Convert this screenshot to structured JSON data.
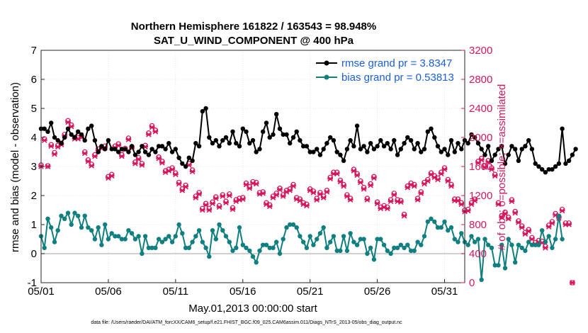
{
  "chart_data": {
    "type": "line",
    "title": [
      "Northern Hemisphere 161822 / 163543 = 98.948%",
      "SAT_U_WIND_COMPONENT @ 400 hPa"
    ],
    "xlabel": "May.01,2013 00:00:00 start",
    "ylabel": "rmse and bias (model - observation)",
    "ylabel_right": "# of obs: o=possible; ×=assimilated",
    "footnote": "data file: /Users/raeder/DAI/ATM_forcXX/CAM6_setup/f.e21.FHIST_BGC.f09_025.CAM6assim.011/Diags_NTrS_2013-05/obs_diag_output.nc",
    "x_ticks": [
      "05/01",
      "05/06",
      "05/11",
      "05/16",
      "05/21",
      "05/26",
      "05/31"
    ],
    "x_range_days": [
      1,
      32.5
    ],
    "ylim": [
      -1,
      7
    ],
    "ylim_right": [
      0,
      3200
    ],
    "y_ticks": [
      "-1",
      "0",
      "1",
      "2",
      "3",
      "4",
      "5",
      "6",
      "7"
    ],
    "y_ticks_right": [
      "0",
      "400",
      "800",
      "1200",
      "1600",
      "2000",
      "2400",
      "2800",
      "3200"
    ],
    "grid": true,
    "legend_placement": "top-right",
    "colors": {
      "rmse": "#000000",
      "bias": "#107f80",
      "obs": "#d6155c",
      "zero_line": "#c0c0c0"
    },
    "series": [
      {
        "name": "rmse grand pr = 3.8347",
        "axis": "left",
        "x_start_day": 1,
        "x_step_days": 0.25,
        "values": [
          4.3,
          4.3,
          4.2,
          4.5,
          4,
          3.9,
          3.8,
          4,
          4.3,
          4.1,
          4,
          4.2,
          4.1,
          3.9,
          4.3,
          4.4,
          3.9,
          3.5,
          3.7,
          3.6,
          3.9,
          3.6,
          3.6,
          3.5,
          3.6,
          3.6,
          3.5,
          3.7,
          3.4,
          3.5,
          3.7,
          3.5,
          3.4,
          3.6,
          3.5,
          3.7,
          3.7,
          3.6,
          3.8,
          3.5,
          3.6,
          3.3,
          3.1,
          3.0,
          3.3,
          3.2,
          3.8,
          3.7,
          4.9,
          5.0,
          4.0,
          3.8,
          3.9,
          3.7,
          3.9,
          4.0,
          3.8,
          4.2,
          3.8,
          3.7,
          4.3,
          4.2,
          3.8,
          3.9,
          3.5,
          3.6,
          4.2,
          4.5,
          4.0,
          4.1,
          4.8,
          4.3,
          4.1,
          4.1,
          3.8,
          4.0,
          4.2,
          3.9,
          3.7,
          3.7,
          3.5,
          3.5,
          3.6,
          3.4,
          3.6,
          3.8,
          4.0,
          3.9,
          3.5,
          3.4,
          3.2,
          3.6,
          3.9,
          3.7,
          4.4,
          3.6,
          3.7,
          3.5,
          3.8,
          3.6,
          3.7,
          3.9,
          3.7,
          3.8,
          3.6,
          3.9,
          3.4,
          3.6,
          3.8,
          4.0,
          3.9,
          3.6,
          3.8,
          3.5,
          3.6,
          4.2,
          4.3,
          4.0,
          3.7,
          3.5,
          3.6,
          3.4,
          3.9,
          3.5,
          3.8,
          3.6,
          3.9,
          3.8,
          4.1,
          4.0,
          3.8,
          3.6,
          3.4,
          3.7,
          3.2,
          3.4,
          3.6,
          3.7,
          3.1,
          3.4,
          3.7,
          3.6,
          3.2,
          3.6,
          3.7,
          3.9,
          3.6,
          3.1,
          3.0,
          2.9,
          2.8,
          2.9,
          2.9,
          3.0,
          3.1,
          4.3,
          3.1,
          3.2,
          3.4,
          3.6
        ]
      },
      {
        "name": "bias grand pr = 0.53813",
        "axis": "left",
        "x_start_day": 1,
        "x_step_days": 0.25,
        "values": [
          0.6,
          0.2,
          1.2,
          0.9,
          0.4,
          0.8,
          1.3,
          1.2,
          1.4,
          1.0,
          1.4,
          1.3,
          0.9,
          1.3,
          0.9,
          0.8,
          0.5,
          0.9,
          0.3,
          1.0,
          0.5,
          0.7,
          0.6,
          0.6,
          0.5,
          0.5,
          0.8,
          0.7,
          0.5,
          0.6,
          0.0,
          0.6,
          0.2,
          0.2,
          0.2,
          0.5,
          0.4,
          0.5,
          0.6,
          0.4,
          0.6,
          1.0,
          0.7,
          0.2,
          0.2,
          0.4,
          0.6,
          0.8,
          0.4,
          0.2,
          -0.1,
          0.8,
          0.5,
          1.0,
          0.8,
          0.6,
          0.4,
          0.1,
          0.2,
          0.9,
          0.3,
          0.2,
          0.1,
          -0.1,
          -0.3,
          0.1,
          0.3,
          0.3,
          0.2,
          0.2,
          0.4,
          0.0,
          0.5,
          0.9,
          1.0,
          1.0,
          0.9,
          0.6,
          0.4,
          0.2,
          0.6,
          0.3,
          0.5,
          0.7,
          0.9,
          0.2,
          0.4,
          0.6,
          0.1,
          0.1,
          0.6,
          0.1,
          0.7,
          0.4,
          0.3,
          0.5,
          0.5,
          0.0,
          0.2,
          -0.2,
          0.5,
          0.5,
          0.3,
          0.1,
          0.0,
          0.2,
          0.2,
          0.3,
          0.2,
          0.3,
          0.1,
          0.1,
          0.4,
          0.3,
          0.6,
          1.1,
          1.2,
          1.1,
          0.9,
          0.9,
          1.1,
          0.8,
          0.9,
          0.5,
          0.4,
          0.7,
          0.4,
          0.3,
          0.6,
          0.4,
          0.5,
          -0.9,
          0.5,
          0.3,
          0.2,
          -0.4,
          -0.4,
          0.3,
          -0.5,
          0.5,
          0.3,
          -0.3,
          0.3,
          0.2,
          0.1,
          0.4,
          0.3,
          0.3,
          0.3,
          0.8,
          0.4,
          0.6,
          0.2,
          0.5,
          1.3,
          0.5
        ]
      },
      {
        "name": "possible",
        "axis": "right",
        "marker": "circle",
        "x_start_day": 1,
        "x_step_days": 0.25,
        "values": [
          1620,
          1980,
          1610,
          1900,
          1790,
          1890,
          1920,
          2040,
          2230,
          2170,
          2000,
          2000,
          2020,
          1800,
          1690,
          1630,
          1760,
          1840,
          1870,
          1880,
          1460,
          1490,
          1880,
          1910,
          1760,
          1850,
          1990,
          1870,
          1660,
          1720,
          1640,
          1890,
          2060,
          2160,
          2100,
          1730,
          1670,
          1540,
          1560,
          1580,
          1510,
          1380,
          1290,
          1340,
          1640,
          1550,
          1190,
          1240,
          1020,
          1090,
          1020,
          1110,
          1180,
          1060,
          1210,
          1120,
          1220,
          1030,
          1140,
          1160,
          1170,
          1370,
          1320,
          1390,
          1380,
          1240,
          1250,
          1100,
          1070,
          1190,
          1230,
          1300,
          1210,
          1270,
          1290,
          1350,
          1170,
          1150,
          1100,
          1080,
          1290,
          1260,
          1160,
          1240,
          1190,
          1270,
          1450,
          1520,
          1520,
          1410,
          1350,
          1210,
          1160,
          1560,
          1500,
          1400,
          1310,
          1160,
          1360,
          1460,
          1110,
          1040,
          1060,
          1040,
          1140,
          1230,
          1140,
          1130,
          940,
          1330,
          1370,
          1350,
          1160,
          1250,
          1380,
          1420,
          1510,
          1470,
          1440,
          1520,
          1580,
          1420,
          1350,
          1150,
          1150,
          1100,
          1000,
          1010,
          1100,
          1150,
          1670,
          1710,
          1610,
          1680,
          1580,
          1490,
          1100,
          920,
          970,
          900,
          1140,
          980,
          850,
          780,
          690,
          730,
          620,
          550,
          580,
          570,
          500,
          790,
          840,
          950,
          910,
          1010,
          820,
          820,
          0
        ]
      },
      {
        "name": "assimilated",
        "axis": "right",
        "marker": "x",
        "x_start_day": 1,
        "x_step_days": 0.25,
        "values": [
          1600,
          1960,
          1600,
          1880,
          1770,
          1870,
          1900,
          2020,
          2210,
          2150,
          1980,
          1980,
          2000,
          1780,
          1670,
          1610,
          1740,
          1820,
          1850,
          1860,
          1440,
          1470,
          1860,
          1890,
          1740,
          1830,
          1970,
          1850,
          1640,
          1700,
          1620,
          1870,
          2040,
          2140,
          2080,
          1710,
          1650,
          1520,
          1540,
          1560,
          1490,
          1360,
          1270,
          1320,
          1620,
          1530,
          1170,
          1220,
          1000,
          1070,
          1000,
          1090,
          1160,
          1040,
          1190,
          1100,
          1200,
          1010,
          1120,
          1140,
          1150,
          1350,
          1300,
          1370,
          1360,
          1220,
          1230,
          1080,
          1050,
          1170,
          1210,
          1280,
          1190,
          1250,
          1270,
          1330,
          1150,
          1130,
          1080,
          1060,
          1270,
          1240,
          1140,
          1220,
          1170,
          1250,
          1430,
          1500,
          1500,
          1390,
          1330,
          1190,
          1140,
          1540,
          1480,
          1380,
          1290,
          1140,
          1340,
          1440,
          1090,
          1020,
          1040,
          1020,
          1120,
          1210,
          1120,
          1110,
          920,
          1310,
          1350,
          1330,
          1140,
          1230,
          1360,
          1400,
          1490,
          1450,
          1420,
          1500,
          1560,
          1400,
          1330,
          1130,
          1130,
          1080,
          980,
          990,
          1080,
          1130,
          1650,
          1690,
          1590,
          1660,
          1560,
          1470,
          1080,
          900,
          950,
          880,
          1120,
          960,
          830,
          760,
          670,
          710,
          600,
          530,
          560,
          550,
          480,
          770,
          820,
          930,
          890,
          990,
          800,
          800,
          0
        ]
      }
    ]
  }
}
